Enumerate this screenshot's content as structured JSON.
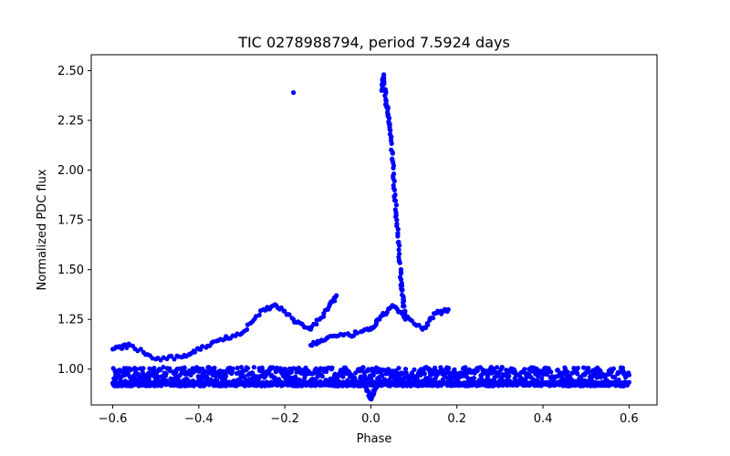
{
  "chart_data": {
    "type": "scatter",
    "title": "TIC 0278988794, period 7.5924 days",
    "xlabel": "Phase",
    "ylabel": "Normalized PDC flux",
    "xlim": [
      -0.65,
      0.665
    ],
    "ylim": [
      0.82,
      2.58
    ],
    "xticks": [
      -0.6,
      -0.4,
      -0.2,
      0.0,
      0.2,
      0.4,
      0.6
    ],
    "xtick_labels": [
      "−0.6",
      "−0.4",
      "−0.2",
      "0.0",
      "0.2",
      "0.4",
      "0.6"
    ],
    "yticks": [
      1.0,
      1.25,
      1.5,
      1.75,
      2.0,
      2.25,
      2.5
    ],
    "ytick_labels": [
      "1.00",
      "1.25",
      "1.50",
      "1.75",
      "2.00",
      "2.25",
      "2.50"
    ],
    "marker_color": "#0000ff",
    "grid": false,
    "series": [
      {
        "name": "dense lower band",
        "x_range": [
          -0.6,
          0.6
        ],
        "y_center": 0.97,
        "y_spread": 0.04
      },
      {
        "name": "lower band 2",
        "x_range": [
          -0.6,
          0.6
        ],
        "y_center": 0.925,
        "y_spread": 0.01
      },
      {
        "name": "eclipse dip",
        "x": [
          -0.02,
          -0.01,
          0.0,
          0.01,
          0.02
        ],
        "y": [
          0.95,
          0.9,
          0.85,
          0.9,
          0.96
        ]
      },
      {
        "name": "flare",
        "x": [
          0.025,
          0.03,
          0.035,
          0.04,
          0.045,
          0.05,
          0.055,
          0.06,
          0.065,
          0.07,
          0.075,
          0.08
        ],
        "y": [
          2.4,
          2.48,
          2.35,
          2.28,
          2.2,
          2.05,
          1.9,
          1.75,
          1.6,
          1.45,
          1.35,
          1.25
        ]
      },
      {
        "name": "outlier",
        "x": [
          -0.18
        ],
        "y": [
          2.39
        ]
      },
      {
        "name": "variability arc 1",
        "x": [
          -0.6,
          -0.56,
          -0.5,
          -0.44,
          -0.4,
          -0.35,
          -0.3,
          -0.25,
          -0.22,
          -0.18,
          -0.14,
          -0.1,
          -0.08
        ],
        "y": [
          1.1,
          1.12,
          1.05,
          1.06,
          1.1,
          1.15,
          1.18,
          1.3,
          1.32,
          1.25,
          1.2,
          1.3,
          1.37
        ]
      },
      {
        "name": "variability arc 2",
        "x": [
          -0.14,
          -0.1,
          -0.05,
          0.0,
          0.02,
          0.05,
          0.08,
          0.12,
          0.15,
          0.18
        ],
        "y": [
          1.12,
          1.16,
          1.17,
          1.2,
          1.25,
          1.32,
          1.26,
          1.2,
          1.28,
          1.3
        ]
      }
    ]
  }
}
